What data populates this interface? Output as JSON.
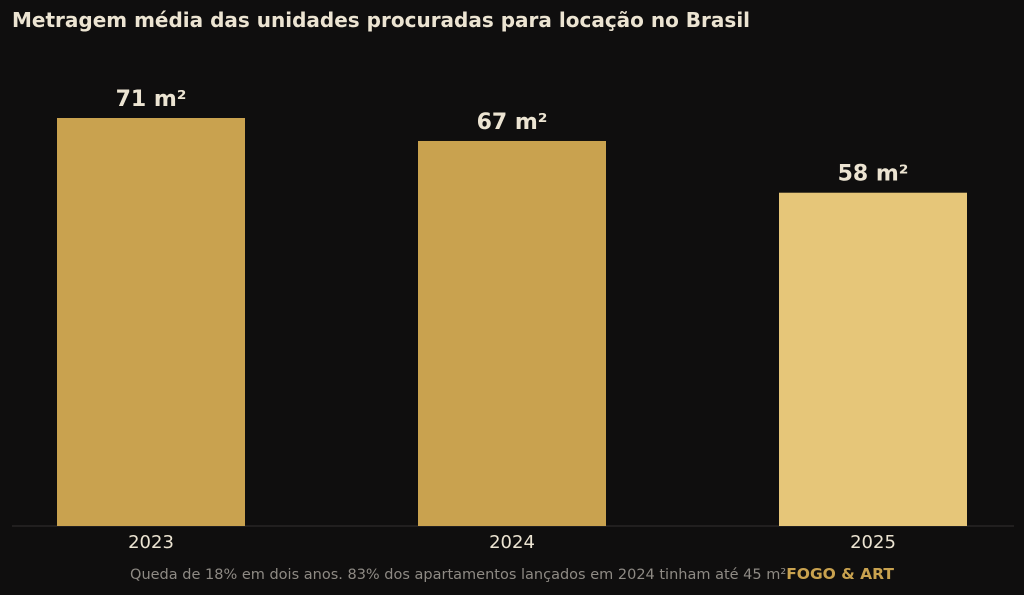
{
  "colors": {
    "background": "#0f0e0e",
    "bar": "#c9a24f",
    "bar_highlight": "#e6c679",
    "text": "#ece4d2",
    "axis": "#333030",
    "footer_note": "#8e8a84",
    "brand": "#c9a24f"
  },
  "chart_data": {
    "type": "bar",
    "title": "Metragem média das unidades procuradas para locação no Brasil",
    "categories": [
      "2023",
      "2024",
      "2025"
    ],
    "values": [
      71,
      67,
      58
    ],
    "value_labels": [
      "71 m²",
      "67 m²",
      "58 m²"
    ],
    "highlight_index": 2,
    "xlabel": "",
    "ylabel": "",
    "ylim": [
      0,
      71
    ],
    "grid": false,
    "legend": "none"
  },
  "footer": {
    "note": "Queda de 18% em dois anos.  83% dos apartamentos lançados em 2024 tinham até 45 m²",
    "brand": "FOGO & ART"
  }
}
